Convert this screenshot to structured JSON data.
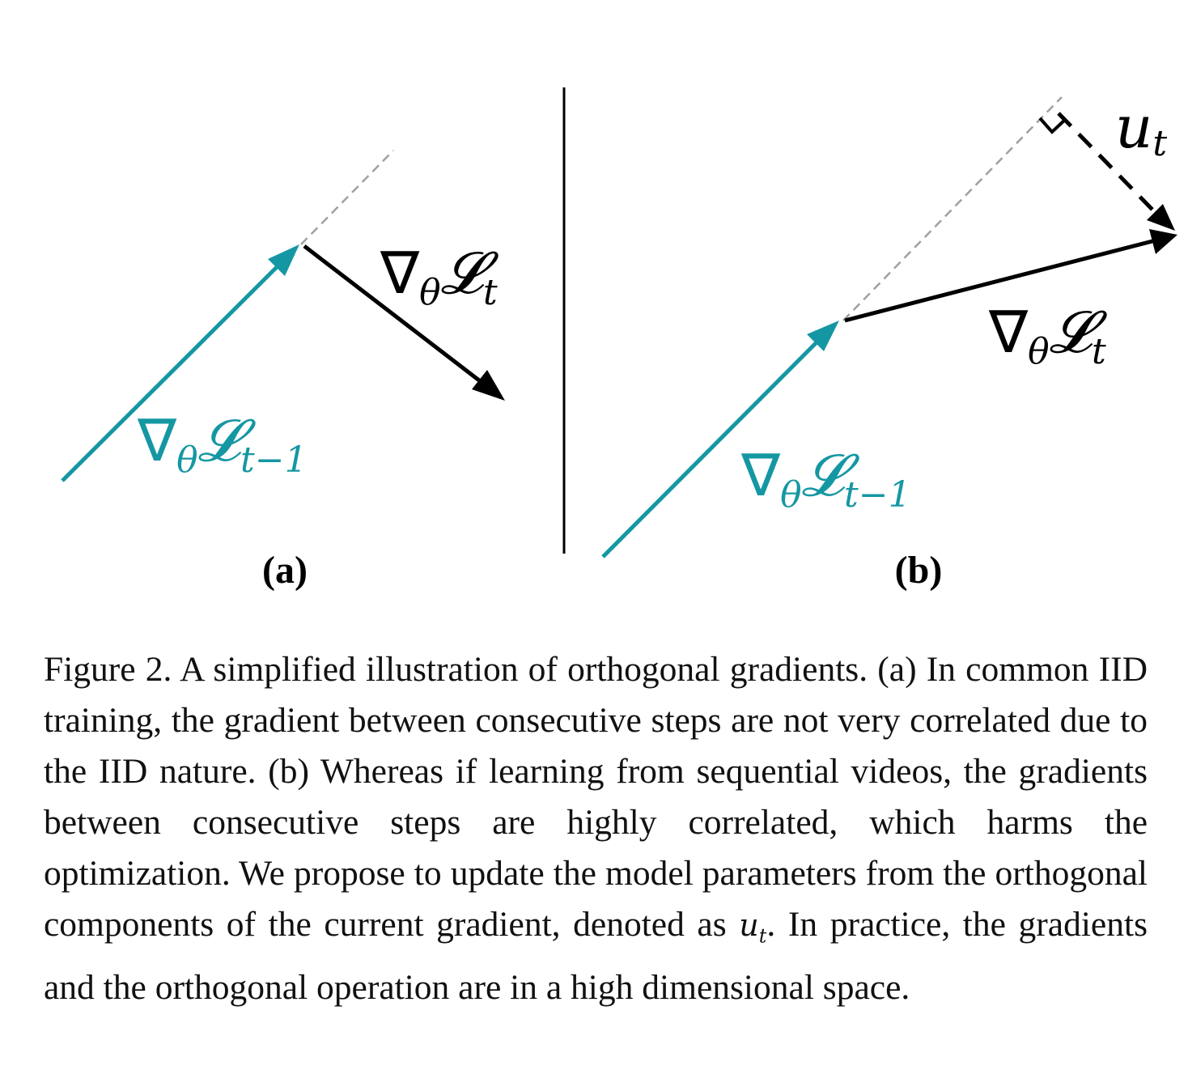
{
  "figure": {
    "panel_a": {
      "label": "(a)",
      "prev_gradient": {
        "nabla": "∇",
        "theta": "θ",
        "L": "𝓛",
        "sub": "t−1"
      },
      "curr_gradient": {
        "nabla": "∇",
        "theta": "θ",
        "L": "𝓛",
        "sub": "t"
      }
    },
    "panel_b": {
      "label": "(b)",
      "prev_gradient": {
        "nabla": "∇",
        "theta": "θ",
        "L": "𝓛",
        "sub": "t−1"
      },
      "curr_gradient": {
        "nabla": "∇",
        "theta": "θ",
        "L": "𝓛",
        "sub": "t"
      },
      "orthogonal": {
        "u": "u",
        "sub": "t"
      }
    },
    "colors": {
      "teal": "#1597a3",
      "black": "#000000",
      "dashed_gray": "#a0a0a0"
    }
  },
  "caption": {
    "part1": "Figure 2. A simplified illustration of orthogonal gradients. (a) In common IID training, the gradient between consecutive steps are not very correlated due to the IID nature. (b) Whereas if learning from sequential videos, the gradients between consecutive steps are highly correlated, which harms the optimization. We propose to update the model parameters from the orthogonal components of the current gradient, denoted as ",
    "math_u": "u",
    "math_sub": "t",
    "part2": ". In practice, the gradients and the orthogonal operation are in a high dimensional space."
  }
}
